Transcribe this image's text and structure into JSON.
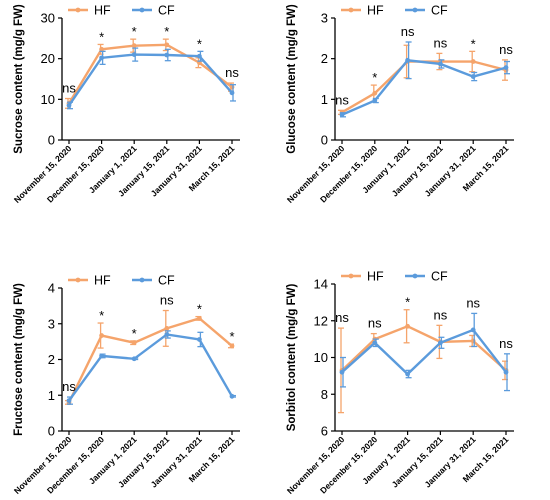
{
  "figure": {
    "colors": {
      "HF": "#f5a46b",
      "CF": "#5b9bdc",
      "axis": "#000000"
    }
  },
  "chart_data": [
    {
      "type": "line",
      "ylabel": "Sucrose content (mg/g FW)",
      "xlabel": "",
      "categories": [
        "November 15, 2020",
        "December 15, 2020",
        "January 1, 2021",
        "January 15, 2021",
        "January 31, 2021",
        "March 15, 2021"
      ],
      "ylim": [
        0,
        30
      ],
      "yticks": [
        0,
        10,
        20,
        30
      ],
      "legend": "top-left",
      "series": [
        {
          "name": "HF",
          "values": [
            9.0,
            22.3,
            23.2,
            23.4,
            19.0,
            13.0
          ],
          "errors": [
            1.2,
            1.2,
            1.6,
            1.4,
            1.2,
            1.0
          ]
        },
        {
          "name": "CF",
          "values": [
            8.5,
            20.2,
            21.0,
            20.9,
            20.6,
            11.6
          ],
          "errors": [
            0.8,
            1.6,
            1.6,
            1.4,
            1.2,
            2.0
          ]
        }
      ],
      "annotations": [
        "ns",
        "*",
        "*",
        "*",
        "*",
        "ns"
      ]
    },
    {
      "type": "line",
      "ylabel": "Glucose content (mg/g FW)",
      "xlabel": "",
      "categories": [
        "November 15, 2020",
        "December 15, 2020",
        "January 1, 2021",
        "January 15, 2021",
        "January 31, 2021",
        "March 15, 2021"
      ],
      "ylim": [
        0,
        3
      ],
      "yticks": [
        0,
        1,
        2,
        3
      ],
      "legend": "top-left",
      "series": [
        {
          "name": "HF",
          "values": [
            0.68,
            1.15,
            1.93,
            1.93,
            1.93,
            1.72
          ],
          "errors": [
            0.05,
            0.2,
            0.4,
            0.2,
            0.25,
            0.25
          ]
        },
        {
          "name": "CF",
          "values": [
            0.62,
            0.97,
            1.96,
            1.87,
            1.56,
            1.78
          ],
          "errors": [
            0.05,
            0.05,
            0.45,
            0.1,
            0.1,
            0.15
          ]
        }
      ],
      "annotations": [
        "ns",
        "*",
        "ns",
        "ns",
        "*",
        "ns"
      ]
    },
    {
      "type": "line",
      "ylabel": "Fructose content (mg/g FW)",
      "xlabel": "",
      "categories": [
        "November 15, 2020",
        "December 15, 2020",
        "January 1, 2021",
        "January 15, 2021",
        "January 31, 2021",
        "March 15, 2021"
      ],
      "ylim": [
        0,
        4
      ],
      "yticks": [
        0,
        1,
        2,
        3,
        4
      ],
      "legend": "top-left",
      "series": [
        {
          "name": "HF",
          "values": [
            0.8,
            2.67,
            2.47,
            2.87,
            3.15,
            2.38
          ],
          "errors": [
            0.05,
            0.35,
            0.05,
            0.5,
            0.05,
            0.05
          ]
        },
        {
          "name": "CF",
          "values": [
            0.85,
            2.1,
            2.02,
            2.7,
            2.56,
            0.97
          ],
          "errors": [
            0.1,
            0.05,
            0.02,
            0.1,
            0.2,
            0.02
          ]
        }
      ],
      "annotations": [
        "ns",
        "*",
        "*",
        "ns",
        "*",
        "*"
      ]
    },
    {
      "type": "line",
      "ylabel": "Sorbitol content (mg/g FW)",
      "xlabel": "",
      "categories": [
        "November 15, 2020",
        "December 15, 2020",
        "January 1, 2021",
        "January 15, 2021",
        "January 31, 2021",
        "March 15, 2021"
      ],
      "ylim": [
        6,
        14
      ],
      "yticks": [
        6,
        8,
        10,
        12,
        14
      ],
      "legend": "top-left",
      "series": [
        {
          "name": "HF",
          "values": [
            9.3,
            11.0,
            11.7,
            10.85,
            10.9,
            9.3
          ],
          "errors": [
            2.3,
            0.3,
            0.9,
            0.9,
            0.3,
            0.5
          ]
        },
        {
          "name": "CF",
          "values": [
            9.2,
            10.8,
            9.1,
            10.8,
            11.5,
            9.2
          ],
          "errors": [
            0.8,
            0.2,
            0.2,
            0.3,
            0.9,
            1.0
          ]
        }
      ],
      "annotations": [
        "ns",
        "ns",
        "*",
        "ns",
        "ns",
        "ns"
      ]
    }
  ]
}
